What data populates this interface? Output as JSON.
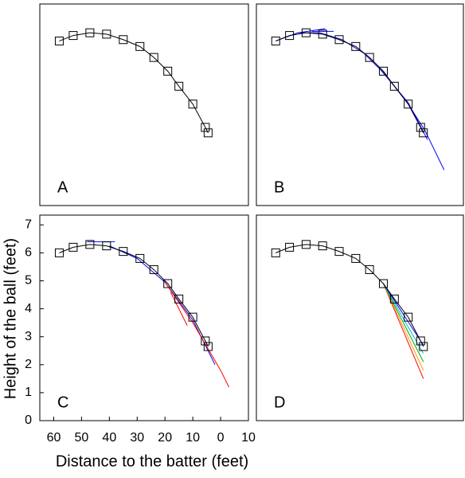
{
  "chart_data": [
    {
      "type": "line",
      "label": "A",
      "xlim": [
        65,
        -10
      ],
      "ylim": [
        0,
        7.35
      ],
      "series": [
        {
          "color": "#000000",
          "marker": "square",
          "x": [
            58,
            53,
            47,
            41,
            35,
            29,
            24,
            19,
            15,
            10,
            5.5,
            4.5
          ],
          "values": [
            6.0,
            6.2,
            6.3,
            6.25,
            6.05,
            5.8,
            5.4,
            4.9,
            4.35,
            3.7,
            2.85,
            2.65
          ]
        }
      ]
    },
    {
      "type": "line",
      "label": "B",
      "xlim": [
        65,
        -10
      ],
      "ylim": [
        0,
        7.35
      ],
      "series": [
        {
          "color": "#0000ff",
          "x": [
            58,
            50,
            42,
            34,
            26,
            18,
            10,
            4,
            -3
          ],
          "values": [
            6.0,
            6.3,
            6.3,
            6.05,
            5.55,
            4.75,
            3.7,
            2.75,
            1.3
          ]
        },
        {
          "color": "#0000ff",
          "x": [
            50,
            40
          ],
          "values": [
            6.3,
            6.45
          ]
        },
        {
          "color": "#0000ff",
          "x": [
            45,
            37
          ],
          "values": [
            6.35,
            6.35
          ]
        },
        {
          "color": "#0000ff",
          "x": [
            20,
            10,
            3
          ],
          "values": [
            4.95,
            3.75,
            2.4
          ]
        },
        {
          "color": "#000000",
          "marker": "square",
          "x": [
            58,
            53,
            47,
            41,
            35,
            29,
            24,
            19,
            15,
            10,
            5.5,
            4.5
          ],
          "values": [
            6.0,
            6.2,
            6.3,
            6.25,
            6.05,
            5.8,
            5.4,
            4.9,
            4.35,
            3.7,
            2.85,
            2.65
          ]
        }
      ]
    },
    {
      "type": "line",
      "label": "C",
      "xlim": [
        65,
        -10
      ],
      "ylim": [
        0,
        7.35
      ],
      "xticks": [
        60,
        50,
        40,
        30,
        20,
        10,
        0,
        {
          "value": -10,
          "label": "10"
        }
      ],
      "yticks": [
        0,
        1,
        2,
        3,
        4,
        5,
        6,
        7
      ],
      "xlabel": "Distance to the batter (feet)",
      "ylabel": "Height of the ball (feet)",
      "series": [
        {
          "color": "#0000ff",
          "x": [
            48,
            38
          ],
          "values": [
            6.4,
            6.4
          ]
        },
        {
          "color": "#0000ff",
          "x": [
            40,
            30,
            20,
            10,
            2
          ],
          "values": [
            6.25,
            5.8,
            4.95,
            3.6,
            2.0
          ]
        },
        {
          "color": "#ff0000",
          "x": [
            20,
            10,
            0,
            -3
          ],
          "values": [
            4.95,
            3.5,
            1.8,
            1.2
          ]
        },
        {
          "color": "#ff0000",
          "x": [
            18,
            12
          ],
          "values": [
            4.6,
            3.4
          ]
        },
        {
          "color": "#000000",
          "marker": "square",
          "x": [
            58,
            53,
            47,
            41,
            35,
            29,
            24,
            19,
            15,
            10,
            5.5,
            4.5
          ],
          "values": [
            6.0,
            6.2,
            6.3,
            6.25,
            6.05,
            5.8,
            5.4,
            4.9,
            4.35,
            3.7,
            2.85,
            2.65
          ]
        }
      ]
    },
    {
      "type": "line",
      "label": "D",
      "xlim": [
        65,
        -10
      ],
      "ylim": [
        0,
        7.35
      ],
      "series": [
        {
          "color": "#ff0000",
          "x": [
            19,
            4.5
          ],
          "values": [
            4.9,
            1.5
          ]
        },
        {
          "color": "#ff9900",
          "x": [
            19,
            4.5
          ],
          "values": [
            4.9,
            1.8
          ]
        },
        {
          "color": "#00aa00",
          "x": [
            19,
            4.5
          ],
          "values": [
            4.9,
            2.1
          ]
        },
        {
          "color": "#00bbdd",
          "x": [
            19,
            4.5
          ],
          "values": [
            4.9,
            2.4
          ]
        },
        {
          "color": "#0000ff",
          "x": [
            19,
            4.5
          ],
          "values": [
            4.9,
            2.7
          ]
        },
        {
          "color": "#000000",
          "marker": "square",
          "x": [
            58,
            53,
            47,
            41,
            35,
            29,
            24,
            19,
            15,
            10,
            5.5,
            4.5
          ],
          "values": [
            6.0,
            6.2,
            6.3,
            6.25,
            6.05,
            5.8,
            5.4,
            4.9,
            4.35,
            3.7,
            2.85,
            2.65
          ]
        }
      ]
    }
  ]
}
